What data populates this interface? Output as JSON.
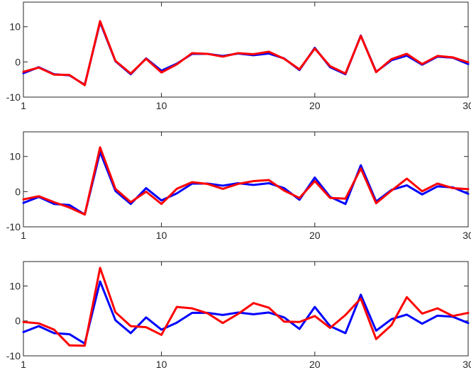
{
  "colors": {
    "blue": "#0000ff",
    "red": "#ff0000",
    "axes": "#262626",
    "background": "#ffffff"
  },
  "chart_data": [
    {
      "type": "line",
      "xlim": [
        1,
        30
      ],
      "ylim": [
        -10,
        17
      ],
      "xticks": [
        1,
        10,
        20,
        30
      ],
      "yticks": [
        -10,
        0,
        10
      ],
      "grid": false,
      "x": [
        1,
        2,
        3,
        4,
        5,
        6,
        7,
        8,
        9,
        10,
        11,
        12,
        13,
        14,
        15,
        16,
        17,
        18,
        19,
        20,
        21,
        22,
        23,
        24,
        25,
        26,
        27,
        28,
        29,
        30
      ],
      "series": [
        {
          "color": "#0000ff",
          "values": [
            -3.2,
            -1.5,
            -3.5,
            -3.8,
            -6.5,
            11.3,
            0.2,
            -3.5,
            1.0,
            -2.5,
            -0.5,
            2.3,
            2.3,
            1.7,
            2.4,
            1.9,
            2.4,
            1.0,
            -2.3,
            4.0,
            -1.5,
            -3.5,
            7.5,
            -2.8,
            0.5,
            1.8,
            -0.8,
            1.5,
            1.2,
            -0.6
          ]
        },
        {
          "color": "#ff0000",
          "values": [
            -2.8,
            -1.6,
            -3.6,
            -3.7,
            -6.6,
            11.6,
            0.3,
            -3.3,
            0.9,
            -3.0,
            -0.7,
            2.5,
            2.3,
            1.5,
            2.5,
            2.2,
            2.9,
            0.9,
            -2.1,
            3.8,
            -1.2,
            -3.3,
            7.4,
            -2.9,
            0.8,
            2.3,
            -0.6,
            1.7,
            1.3,
            -0.1
          ]
        }
      ]
    },
    {
      "type": "line",
      "xlim": [
        1,
        30
      ],
      "ylim": [
        -10,
        17
      ],
      "xticks": [
        1,
        10,
        20,
        30
      ],
      "yticks": [
        -10,
        0,
        10
      ],
      "grid": false,
      "x": [
        1,
        2,
        3,
        4,
        5,
        6,
        7,
        8,
        9,
        10,
        11,
        12,
        13,
        14,
        15,
        16,
        17,
        18,
        19,
        20,
        21,
        22,
        23,
        24,
        25,
        26,
        27,
        28,
        29,
        30
      ],
      "series": [
        {
          "color": "#0000ff",
          "values": [
            -3.2,
            -1.5,
            -3.5,
            -3.8,
            -6.5,
            11.3,
            0.2,
            -3.5,
            1.0,
            -2.5,
            -0.5,
            2.3,
            2.3,
            1.7,
            2.4,
            1.9,
            2.4,
            1.0,
            -2.3,
            4.0,
            -1.5,
            -3.5,
            7.5,
            -2.8,
            0.5,
            1.8,
            -0.8,
            1.5,
            1.2,
            -0.6
          ]
        },
        {
          "color": "#ff0000",
          "values": [
            -2.2,
            -1.3,
            -3.0,
            -4.5,
            -6.5,
            12.6,
            0.8,
            -3.0,
            0.0,
            -3.5,
            0.8,
            2.7,
            2.2,
            0.8,
            2.2,
            3.0,
            3.3,
            0.3,
            -1.8,
            3.0,
            -1.8,
            -2.0,
            6.6,
            -3.3,
            0.3,
            3.7,
            0.1,
            2.3,
            1.0,
            0.7
          ]
        }
      ]
    },
    {
      "type": "line",
      "xlim": [
        1,
        30
      ],
      "ylim": [
        -10,
        17
      ],
      "xticks": [
        1,
        10,
        20,
        30
      ],
      "yticks": [
        -10,
        0,
        10
      ],
      "grid": false,
      "x": [
        1,
        2,
        3,
        4,
        5,
        6,
        7,
        8,
        9,
        10,
        11,
        12,
        13,
        14,
        15,
        16,
        17,
        18,
        19,
        20,
        21,
        22,
        23,
        24,
        25,
        26,
        27,
        28,
        29,
        30
      ],
      "series": [
        {
          "color": "#0000ff",
          "values": [
            -3.2,
            -1.5,
            -3.5,
            -3.8,
            -6.5,
            11.3,
            0.2,
            -3.5,
            1.0,
            -2.5,
            -0.5,
            2.3,
            2.3,
            1.7,
            2.4,
            1.9,
            2.4,
            1.0,
            -2.3,
            4.0,
            -1.5,
            -3.5,
            7.5,
            -2.8,
            0.5,
            1.8,
            -0.8,
            1.5,
            1.2,
            -0.6
          ]
        },
        {
          "color": "#ff0000",
          "values": [
            -0.3,
            -0.7,
            -2.5,
            -7.0,
            -7.1,
            15.2,
            2.5,
            -1.5,
            -1.8,
            -4.0,
            4.0,
            3.6,
            2.2,
            -0.6,
            2.0,
            5.1,
            3.8,
            -0.2,
            -0.3,
            1.4,
            -2.0,
            1.7,
            6.4,
            -5.2,
            -1.2,
            6.8,
            2.1,
            3.6,
            1.4,
            2.3
          ]
        }
      ]
    }
  ]
}
